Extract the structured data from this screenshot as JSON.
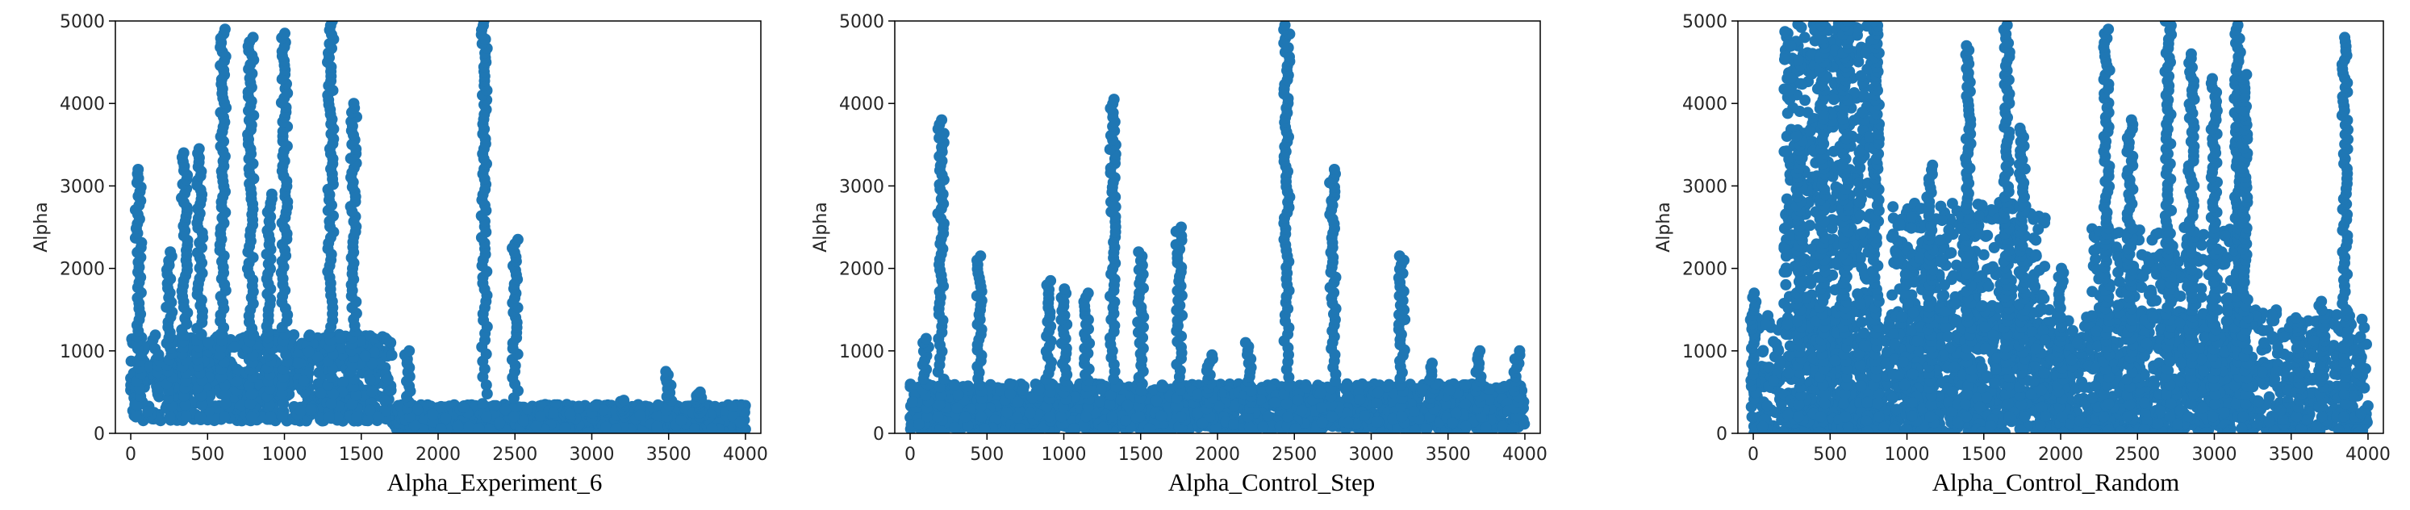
{
  "chart_data": [
    {
      "type": "scatter",
      "title": "Alpha_Experiment_6",
      "xlabel": "",
      "ylabel": "Alpha",
      "xlim": [
        -100,
        4100
      ],
      "ylim": [
        0,
        5000
      ],
      "xticks": [
        0,
        500,
        1000,
        1500,
        2000,
        2500,
        3000,
        3500,
        4000
      ],
      "yticks": [
        0,
        1000,
        2000,
        3000,
        4000,
        5000
      ],
      "grid": false,
      "color": "#1f77b4",
      "baseline": {
        "start": 0,
        "end": 4000,
        "low": 150,
        "high": 1200,
        "count": 2000,
        "taper_after": 1700,
        "taper_floor": 50,
        "taper_ceiling": 350
      },
      "peaks": [
        {
          "x": 50,
          "max": 3200
        },
        {
          "x": 250,
          "max": 2200
        },
        {
          "x": 350,
          "max": 3400
        },
        {
          "x": 450,
          "max": 3450
        },
        {
          "x": 600,
          "max": 4900
        },
        {
          "x": 780,
          "max": 4800
        },
        {
          "x": 900,
          "max": 2900
        },
        {
          "x": 1000,
          "max": 4850
        },
        {
          "x": 1300,
          "max": 5000
        },
        {
          "x": 1450,
          "max": 4000
        },
        {
          "x": 1800,
          "max": 1000
        },
        {
          "x": 2300,
          "max": 5000
        },
        {
          "x": 2500,
          "max": 2350
        },
        {
          "x": 3200,
          "max": 400
        },
        {
          "x": 3500,
          "max": 750
        },
        {
          "x": 3700,
          "max": 500
        }
      ]
    },
    {
      "type": "scatter",
      "title": "Alpha_Control_Step",
      "xlabel": "",
      "ylabel": "Alpha",
      "xlim": [
        -100,
        4100
      ],
      "ylim": [
        0,
        5000
      ],
      "xticks": [
        0,
        500,
        1000,
        1500,
        2000,
        2500,
        3000,
        3500,
        4000
      ],
      "yticks": [
        0,
        1000,
        2000,
        3000,
        4000,
        5000
      ],
      "grid": false,
      "color": "#1f77b4",
      "baseline": {
        "start": 0,
        "end": 4000,
        "low": 50,
        "high": 600,
        "count": 2000
      },
      "peaks": [
        {
          "x": 100,
          "max": 1150
        },
        {
          "x": 200,
          "max": 3800
        },
        {
          "x": 450,
          "max": 2150
        },
        {
          "x": 900,
          "max": 1850
        },
        {
          "x": 1000,
          "max": 1750
        },
        {
          "x": 1150,
          "max": 1700
        },
        {
          "x": 1320,
          "max": 4050
        },
        {
          "x": 1500,
          "max": 2200
        },
        {
          "x": 1750,
          "max": 2500
        },
        {
          "x": 1950,
          "max": 950
        },
        {
          "x": 2200,
          "max": 1100
        },
        {
          "x": 2450,
          "max": 4950
        },
        {
          "x": 2750,
          "max": 3200
        },
        {
          "x": 3200,
          "max": 2150
        },
        {
          "x": 3400,
          "max": 850
        },
        {
          "x": 3700,
          "max": 1000
        },
        {
          "x": 3950,
          "max": 1000
        }
      ]
    },
    {
      "type": "scatter",
      "title": "Alpha_Control_Random",
      "xlabel": "",
      "ylabel": "Alpha",
      "xlim": [
        -100,
        4100
      ],
      "ylim": [
        0,
        5000
      ],
      "xticks": [
        0,
        500,
        1000,
        1500,
        2000,
        2500,
        3000,
        3500,
        4000
      ],
      "yticks": [
        0,
        1000,
        2000,
        3000,
        4000,
        5000
      ],
      "grid": false,
      "color": "#1f77b4",
      "baseline": {
        "start": 0,
        "end": 4000,
        "low": 0,
        "high": 1500,
        "count": 1800
      },
      "clusters": [
        {
          "start": 200,
          "end": 800,
          "low": 0,
          "high": 5000,
          "count": 700
        },
        {
          "start": 900,
          "end": 1900,
          "low": 0,
          "high": 2800,
          "count": 600
        },
        {
          "start": 2200,
          "end": 3200,
          "low": 0,
          "high": 2500,
          "count": 500
        }
      ],
      "peaks": [
        {
          "x": 0,
          "max": 1700
        },
        {
          "x": 300,
          "max": 3600
        },
        {
          "x": 450,
          "max": 5000
        },
        {
          "x": 600,
          "max": 5000
        },
        {
          "x": 800,
          "max": 5000
        },
        {
          "x": 1150,
          "max": 3250
        },
        {
          "x": 1400,
          "max": 4700
        },
        {
          "x": 1650,
          "max": 4950
        },
        {
          "x": 1750,
          "max": 3700
        },
        {
          "x": 2000,
          "max": 2000
        },
        {
          "x": 2300,
          "max": 4900
        },
        {
          "x": 2450,
          "max": 3800
        },
        {
          "x": 2700,
          "max": 5000
        },
        {
          "x": 2850,
          "max": 4600
        },
        {
          "x": 3000,
          "max": 4300
        },
        {
          "x": 3150,
          "max": 4950
        },
        {
          "x": 3200,
          "max": 4350
        },
        {
          "x": 3550,
          "max": 1400
        },
        {
          "x": 3700,
          "max": 1600
        },
        {
          "x": 3850,
          "max": 4800
        }
      ]
    }
  ]
}
